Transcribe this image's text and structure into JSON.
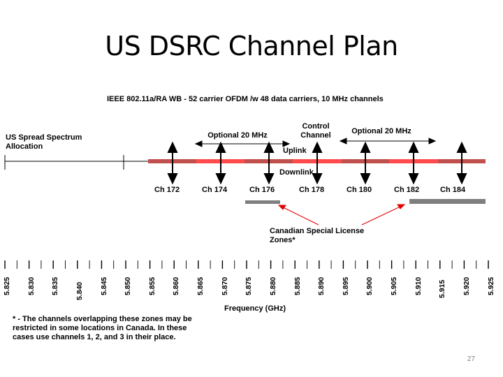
{
  "title": "US DSRC Channel Plan",
  "subtitle": "IEEE 802.11a/RA  WB - 52 carrier OFDM /w  48 data carriers, 10 MHz channels",
  "spread_spectrum_label": "US Spread Spectrum Allocation",
  "optional_left": "Optional 20 MHz",
  "optional_right": "Optional 20 MHz",
  "control_channel": "Control Channel",
  "uplink": "Uplink",
  "downlink": "Downlink",
  "channels": [
    "Ch 172",
    "Ch 174",
    "Ch 176",
    "Ch 178",
    "Ch 180",
    "Ch 182",
    "Ch 184"
  ],
  "canadian_zones": "Canadian Special License Zones*",
  "frequencies": [
    "5.825",
    "5.830",
    "5.835",
    "5.840",
    "5.845",
    "5.850",
    "5.855",
    "5.860",
    "5.865",
    "5.870",
    "5.875",
    "5.880",
    "5.885",
    "5.890",
    "5.895",
    "5.900",
    "5.905",
    "5.910",
    "5.915",
    "5.920",
    "5.925"
  ],
  "axis_title": "Frequency (GHz)",
  "footnote": "* - The channels overlapping these zones may be  restricted in some locations in Canada.  In these cases use channels 1, 2, and 3 in their place.",
  "slide_number": "27",
  "colors": {
    "band_dark": "#c0504d",
    "band_light": "#ff4b4b",
    "zone_gray": "#7f7f7f",
    "pointer_red": "#e00000"
  }
}
